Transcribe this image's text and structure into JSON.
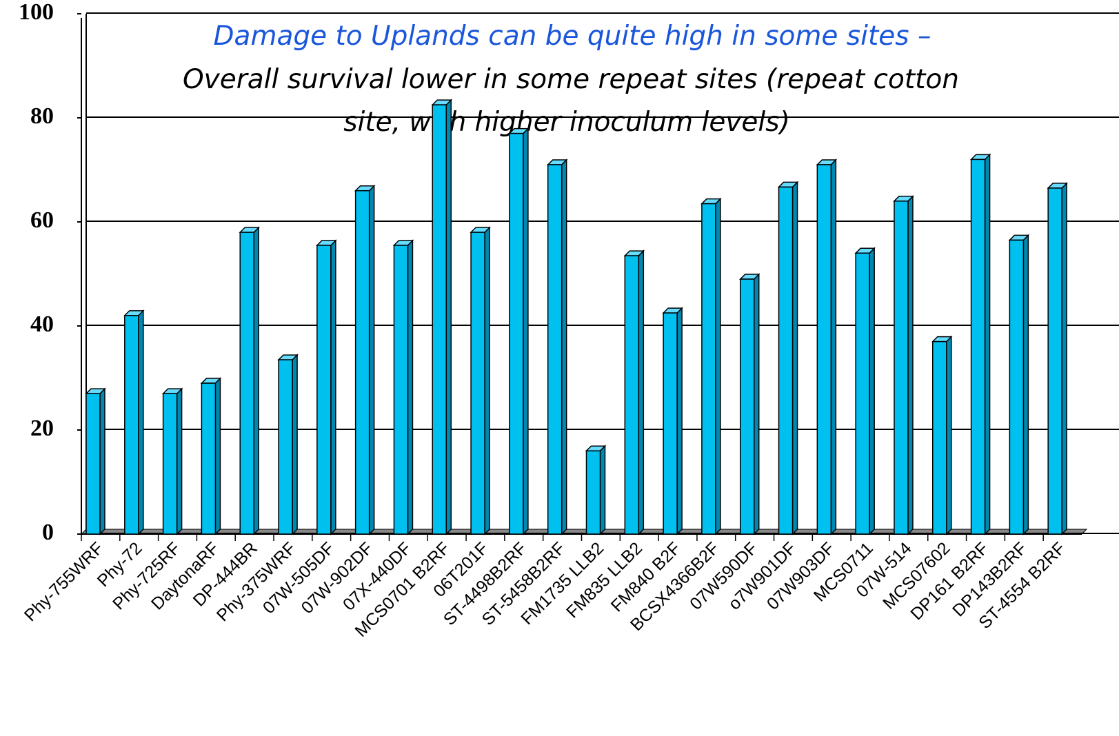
{
  "chart_data": {
    "type": "bar",
    "title": "Damage to Uplands can be quite high in some sites –",
    "subtitle": [
      "Overall survival lower in some repeat sites (repeat cotton",
      "site, with higher inoculum levels)"
    ],
    "categories": [
      "Phy-755WRF",
      "Phy-72",
      "Phy-725RF",
      "DaytonaRF",
      "DP-444BR",
      "Phy-375WRF",
      "07W-505DF",
      "07W-902DF",
      "07X-440DF",
      "MCS0701 B2RF",
      "06T201F",
      "ST-4498B2RF",
      "ST-5458B2RF",
      "FM1735 LLB2",
      "FM835 LLB2",
      "FM840 B2F",
      "BCSX4366B2F",
      "07W590DF",
      "o7W901DF",
      "07W903DF",
      "MCS0711",
      "07W-514",
      "MCS07602",
      "DP161 B2RF",
      "DP143B2RF",
      "ST-4554 B2RF"
    ],
    "values": [
      27,
      42,
      27,
      29,
      58,
      33.5,
      55.5,
      66,
      55.5,
      82.5,
      58,
      77,
      71,
      16,
      53.5,
      42.5,
      63.5,
      49,
      66.7,
      71,
      54,
      64,
      37,
      72,
      56.5,
      66.5
    ],
    "color": "#00c0f0",
    "ylim": [
      0,
      100
    ],
    "yticks": [
      0,
      20,
      40,
      60,
      80,
      100
    ],
    "grid": true
  }
}
